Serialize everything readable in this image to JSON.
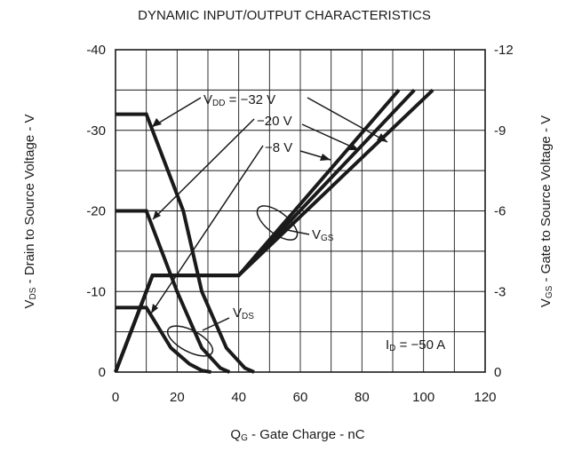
{
  "chart_data": {
    "type": "line",
    "title": "DYNAMIC INPUT/OUTPUT CHARACTERISTICS",
    "xlabel": {
      "main": "Q",
      "sub": "G",
      "rest": " - Gate Charge - nC"
    },
    "ylabel_left": {
      "main": "V",
      "sub": "DS",
      "rest": " - Drain to Source Voltage - V"
    },
    "ylabel_right": {
      "main": "V",
      "sub": "GS",
      "rest": " - Gate to Source Voltage - V"
    },
    "xlim": [
      0,
      120
    ],
    "ylim_left": [
      0,
      -40
    ],
    "ylim_right": [
      0,
      -12
    ],
    "x_ticks": [
      "0",
      "20",
      "40",
      "60",
      "80",
      "100",
      "120"
    ],
    "y_ticks_left": [
      "0",
      "-10",
      "-20",
      "-30",
      "-40"
    ],
    "y_ticks_right": [
      "0",
      "-3",
      "-6",
      "-9",
      "-12"
    ],
    "grid": true,
    "series": [
      {
        "name": "VDD = -32 V",
        "axis": "left",
        "points": [
          [
            0,
            -32
          ],
          [
            10,
            -32
          ],
          [
            22,
            -20
          ],
          [
            28,
            -10
          ],
          [
            36,
            -3
          ],
          [
            42,
            -0.5
          ],
          [
            45,
            0
          ]
        ]
      },
      {
        "name": "VDD = -20 V",
        "axis": "left",
        "points": [
          [
            0,
            -20
          ],
          [
            10,
            -20
          ],
          [
            20,
            -10
          ],
          [
            28,
            -3
          ],
          [
            34,
            -0.5
          ],
          [
            37,
            0
          ]
        ]
      },
      {
        "name": "VDD = -8 V",
        "axis": "left",
        "points": [
          [
            0,
            -8
          ],
          [
            10,
            -8
          ],
          [
            18,
            -3
          ],
          [
            24,
            -1
          ],
          [
            28,
            -0.2
          ],
          [
            31,
            0
          ]
        ]
      },
      {
        "name": "VGS (VDD = -8 V)",
        "axis": "right",
        "points": [
          [
            0,
            0
          ],
          [
            12,
            -3.6
          ],
          [
            40,
            -3.6
          ],
          [
            92,
            -10.5
          ]
        ]
      },
      {
        "name": "VGS (VDD = -20 V)",
        "axis": "right",
        "points": [
          [
            0,
            0
          ],
          [
            12,
            -3.6
          ],
          [
            40,
            -3.6
          ],
          [
            97,
            -10.5
          ]
        ]
      },
      {
        "name": "VGS (VDD = -32 V)",
        "axis": "right",
        "points": [
          [
            0,
            0
          ],
          [
            12,
            -3.6
          ],
          [
            40,
            -3.6
          ],
          [
            103,
            -10.5
          ]
        ]
      }
    ],
    "annotations": {
      "vdd32": {
        "main": "V",
        "sub": "DD",
        "rest": " = −32 V"
      },
      "vdd20": "−20 V",
      "vdd8": "−8 V",
      "vgs": {
        "main": "V",
        "sub": "GS"
      },
      "vds": {
        "main": "V",
        "sub": "DS"
      },
      "id": {
        "main": "I",
        "sub": "D",
        "rest": " = −50 A"
      }
    }
  }
}
